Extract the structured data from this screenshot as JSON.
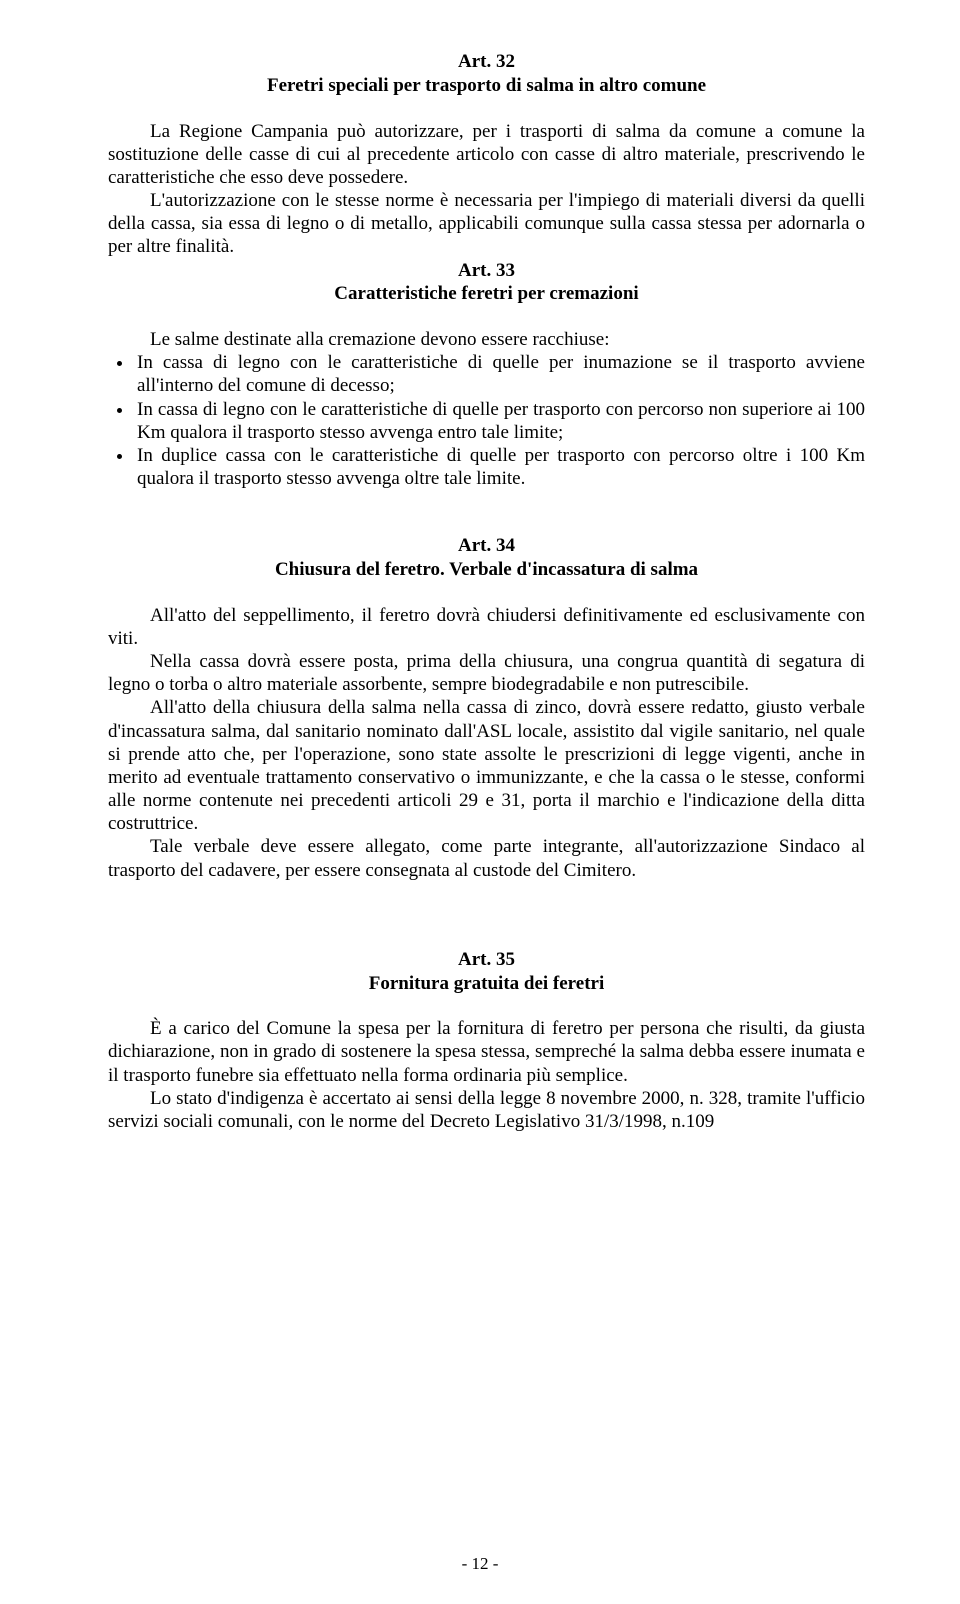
{
  "art32": {
    "num": "Art. 32",
    "title": "Feretri speciali per trasporto di salma in altro comune",
    "p1": "La Regione Campania può autorizzare, per i trasporti di salma da comune a comune la sostituzione delle casse di cui al precedente articolo con casse di altro materiale, prescrivendo le caratteristiche che esso deve possedere.",
    "p2": "L'autorizzazione con le stesse norme è necessaria per l'impiego di materiali diversi da quelli della cassa, sia essa di legno o di metallo, applicabili comunque sulla cassa stessa per adornarla o per altre finalità."
  },
  "art33": {
    "num": "Art. 33",
    "title": "Caratteristiche feretri per cremazioni",
    "intro": "Le salme destinate alla cremazione devono essere racchiuse:",
    "items": [
      "In cassa di legno con le caratteristiche di quelle per inumazione se il trasporto avviene all'interno del comune di decesso;",
      "In cassa di legno con le caratteristiche di quelle per trasporto con percorso non superiore ai 100 Km qualora il trasporto stesso avvenga entro tale limite;",
      "In duplice cassa con le caratteristiche di quelle per trasporto con percorso oltre i 100 Km qualora il trasporto stesso avvenga oltre tale limite."
    ]
  },
  "art34": {
    "num": "Art. 34",
    "title": "Chiusura del feretro. Verbale d'incassatura di salma",
    "p1": "All'atto del seppellimento, il feretro dovrà chiudersi definitivamente ed esclusivamente con viti.",
    "p2": "Nella cassa dovrà essere posta, prima della chiusura, una congrua quantità di segatura di legno o torba o altro materiale assorbente, sempre biodegradabile e non putrescibile.",
    "p3": "All'atto della chiusura della salma nella cassa di zinco, dovrà essere redatto, giusto verbale d'incassatura salma, dal sanitario nominato dall'ASL locale, assistito dal vigile sanitario, nel quale si prende atto che, per l'operazione, sono state assolte le prescrizioni di legge vigenti, anche in merito ad eventuale trattamento conservativo o immunizzante, e che la cassa o le stesse, conformi alle norme contenute nei precedenti articoli 29 e 31, porta il marchio e l'indicazione della ditta costruttrice.",
    "p4": "Tale verbale deve essere allegato, come parte integrante, all'autorizzazione Sindaco al trasporto del cadavere, per essere consegnata al custode del Cimitero."
  },
  "art35": {
    "num": "Art. 35",
    "title": "Fornitura gratuita dei feretri",
    "p1": "È a carico del Comune la spesa per la fornitura di feretro per persona che risulti, da giusta dichiarazione, non in grado di sostenere la spesa stessa, sempreché la salma debba essere inumata e il trasporto funebre sia effettuato nella forma ordinaria più semplice.",
    "p2": "Lo stato d'indigenza è accertato ai sensi della legge 8 novembre 2000, n. 328, tramite l'ufficio servizi sociali comunali, con le norme del Decreto Legislativo 31/3/1998, n.109"
  },
  "footer": "- 12 -"
}
